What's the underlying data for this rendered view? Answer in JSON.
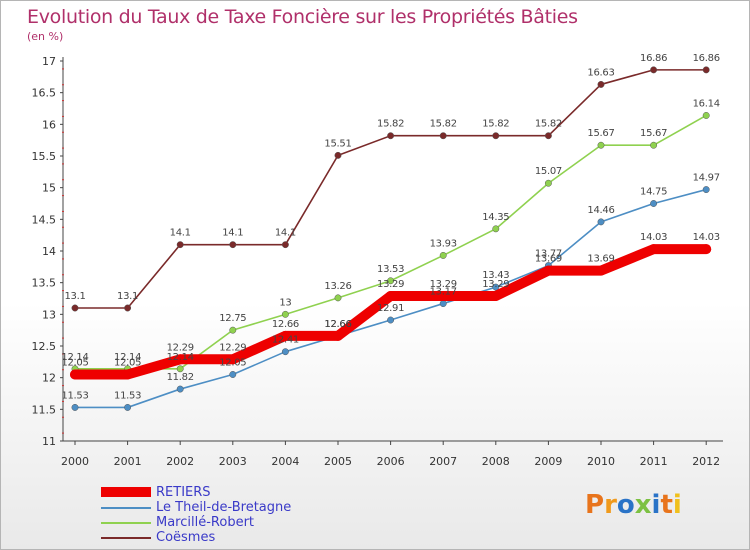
{
  "chart_data": {
    "type": "line",
    "title": "Evolution du Taux de Taxe Foncière sur les Propriétés Bâties",
    "unit_label": "(en %)",
    "xlabel": "",
    "ylabel": "(en %)",
    "ylim": [
      11,
      17
    ],
    "yticks": [
      "11",
      "11.5",
      "12",
      "12.5",
      "13",
      "13.5",
      "14",
      "14.5",
      "15",
      "15.5",
      "16",
      "16.5",
      "17"
    ],
    "categories": [
      "2000",
      "2001",
      "2002",
      "2003",
      "2004",
      "2005",
      "2006",
      "2007",
      "2008",
      "2009",
      "2010",
      "2011",
      "2012"
    ],
    "legend_position": "bottom-left",
    "series": [
      {
        "name": "RETIERS",
        "color": "#ee0000",
        "values": [
          12.05,
          12.05,
          12.29,
          12.29,
          12.66,
          12.66,
          13.29,
          13.29,
          13.29,
          13.69,
          13.69,
          14.03,
          14.03
        ],
        "labels": [
          "12.05",
          "12.05",
          "12.29",
          "12.29",
          "12.66",
          "12.66",
          "13.29",
          "13.29",
          "13.29",
          "13.69",
          "13.69",
          "14.03",
          "14.03"
        ]
      },
      {
        "name": "Le Theil-de-Bretagne",
        "color": "#4d8ec4",
        "values": [
          11.53,
          11.53,
          11.82,
          12.05,
          12.41,
          12.66,
          12.91,
          13.17,
          13.43,
          13.77,
          14.46,
          14.75,
          14.97
        ],
        "labels": [
          "11.53",
          "11.53",
          "11.82",
          "12.05",
          "12.41",
          "12.66",
          "12.91",
          "13.17",
          "13.43",
          "13.77",
          "14.46",
          "14.75",
          "14.97"
        ]
      },
      {
        "name": "Marcillé-Robert",
        "color": "#8fd14f",
        "values": [
          12.14,
          12.14,
          12.14,
          12.75,
          13,
          13.26,
          13.53,
          13.93,
          14.35,
          15.07,
          15.67,
          15.67,
          16.14
        ],
        "labels": [
          "12.14",
          "12.14",
          "12.14",
          "12.75",
          "13",
          "13.26",
          "13.53",
          "13.93",
          "14.35",
          "15.07",
          "15.67",
          "15.67",
          "16.14"
        ]
      },
      {
        "name": "Coësmes",
        "color": "#7a2a2a",
        "values": [
          13.1,
          13.1,
          14.1,
          14.1,
          14.1,
          15.51,
          15.82,
          15.82,
          15.82,
          15.82,
          16.63,
          16.86,
          16.86
        ],
        "labels": [
          "13.1",
          "13.1",
          "14.1",
          "14.1",
          "14.1",
          "15.51",
          "15.82",
          "15.82",
          "15.82",
          "15.82",
          "16.63",
          "16.86",
          "16.86"
        ]
      }
    ]
  },
  "logo": {
    "text": "Proxiti",
    "letter_colors": [
      "#e8741c",
      "#f09a1c",
      "#2a73c7",
      "#7cc142",
      "#2a73c7",
      "#e8741c",
      "#f0c01c"
    ]
  }
}
